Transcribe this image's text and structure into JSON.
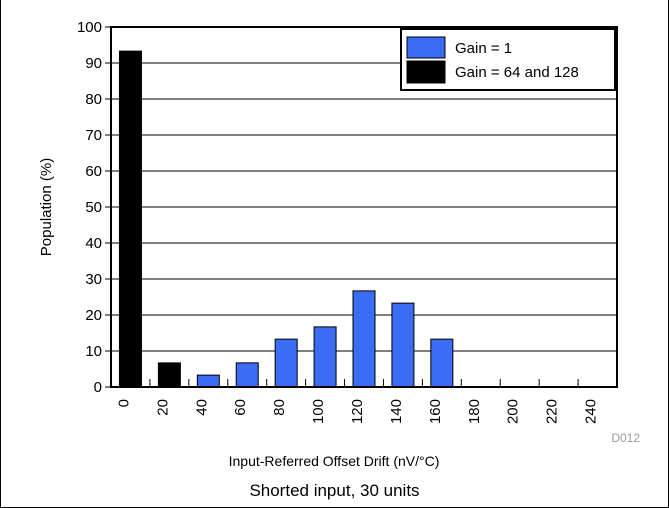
{
  "chart_data": {
    "type": "bar",
    "xlabel": "Input-Referred Offset Drift (nV/°C)",
    "ylabel": "Population (%)",
    "subtitle": "Shorted input, 30 units",
    "figure_id": "D012",
    "ylim": [
      0,
      100
    ],
    "yticks": [
      0,
      10,
      20,
      30,
      40,
      50,
      60,
      70,
      80,
      90,
      100
    ],
    "xticks": [
      "0",
      "20",
      "40",
      "60",
      "80",
      "100",
      "120",
      "140",
      "160",
      "180",
      "200",
      "220",
      "240"
    ],
    "grid": true,
    "legend_position": "top-right",
    "series": [
      {
        "name": "Gain = 1",
        "color": "#3a6cf4",
        "x": [
          40,
          60,
          80,
          100,
          120,
          140,
          160,
          180,
          200,
          220,
          240
        ],
        "values": [
          3.3,
          6.7,
          13.3,
          16.7,
          26.7,
          23.3,
          13.3,
          0,
          0,
          0,
          0
        ]
      },
      {
        "name": "Gain = 64 and 128",
        "color": "#000000",
        "x": [
          0,
          20
        ],
        "values": [
          93.3,
          6.7
        ]
      }
    ]
  }
}
